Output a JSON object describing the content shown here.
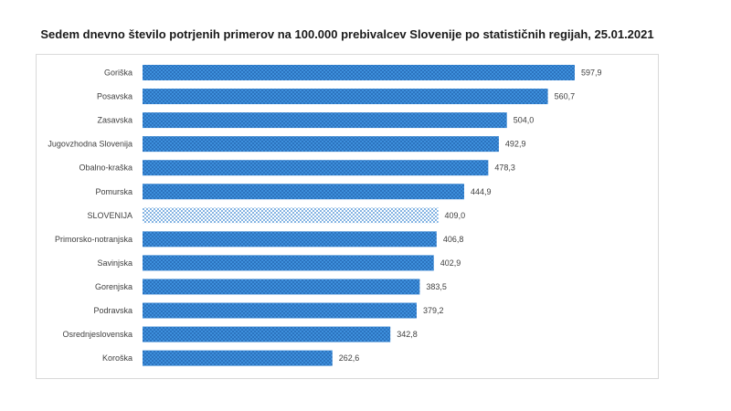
{
  "chart_data": {
    "type": "bar",
    "orientation": "horizontal",
    "title": "Sedem dnevno število potrjenih primerov na 100.000  prebivalcev Slovenije po statističnih regijah, 25.01.2021",
    "categories": [
      "Goriška",
      "Posavska",
      "Zasavska",
      "Jugovzhodna Slovenija",
      "Obalno-kraška",
      "Pomurska",
      "SLOVENIJA",
      "Primorsko-notranjska",
      "Savinjska",
      "Gorenjska",
      "Podravska",
      "Osrednjeslovenska",
      "Koroška"
    ],
    "values": [
      597.9,
      560.7,
      504.0,
      492.9,
      478.3,
      444.9,
      409.0,
      406.8,
      402.9,
      383.5,
      379.2,
      342.8,
      262.6
    ],
    "value_labels": [
      "597,9",
      "560,7",
      "504,0",
      "492,9",
      "478,3",
      "444,9",
      "409,0",
      "406,8",
      "402,9",
      "383,5",
      "379,2",
      "342,8",
      "262,6"
    ],
    "highlight_category": "SLOVENIJA",
    "xlim": [
      0,
      650
    ],
    "grid": false,
    "legend": "none",
    "colors": {
      "bar": "#3d8fdc",
      "bar_pattern": "#1f5fa8",
      "highlight_bg": "#ffffff",
      "highlight_pattern": "#2e7fd0"
    }
  }
}
